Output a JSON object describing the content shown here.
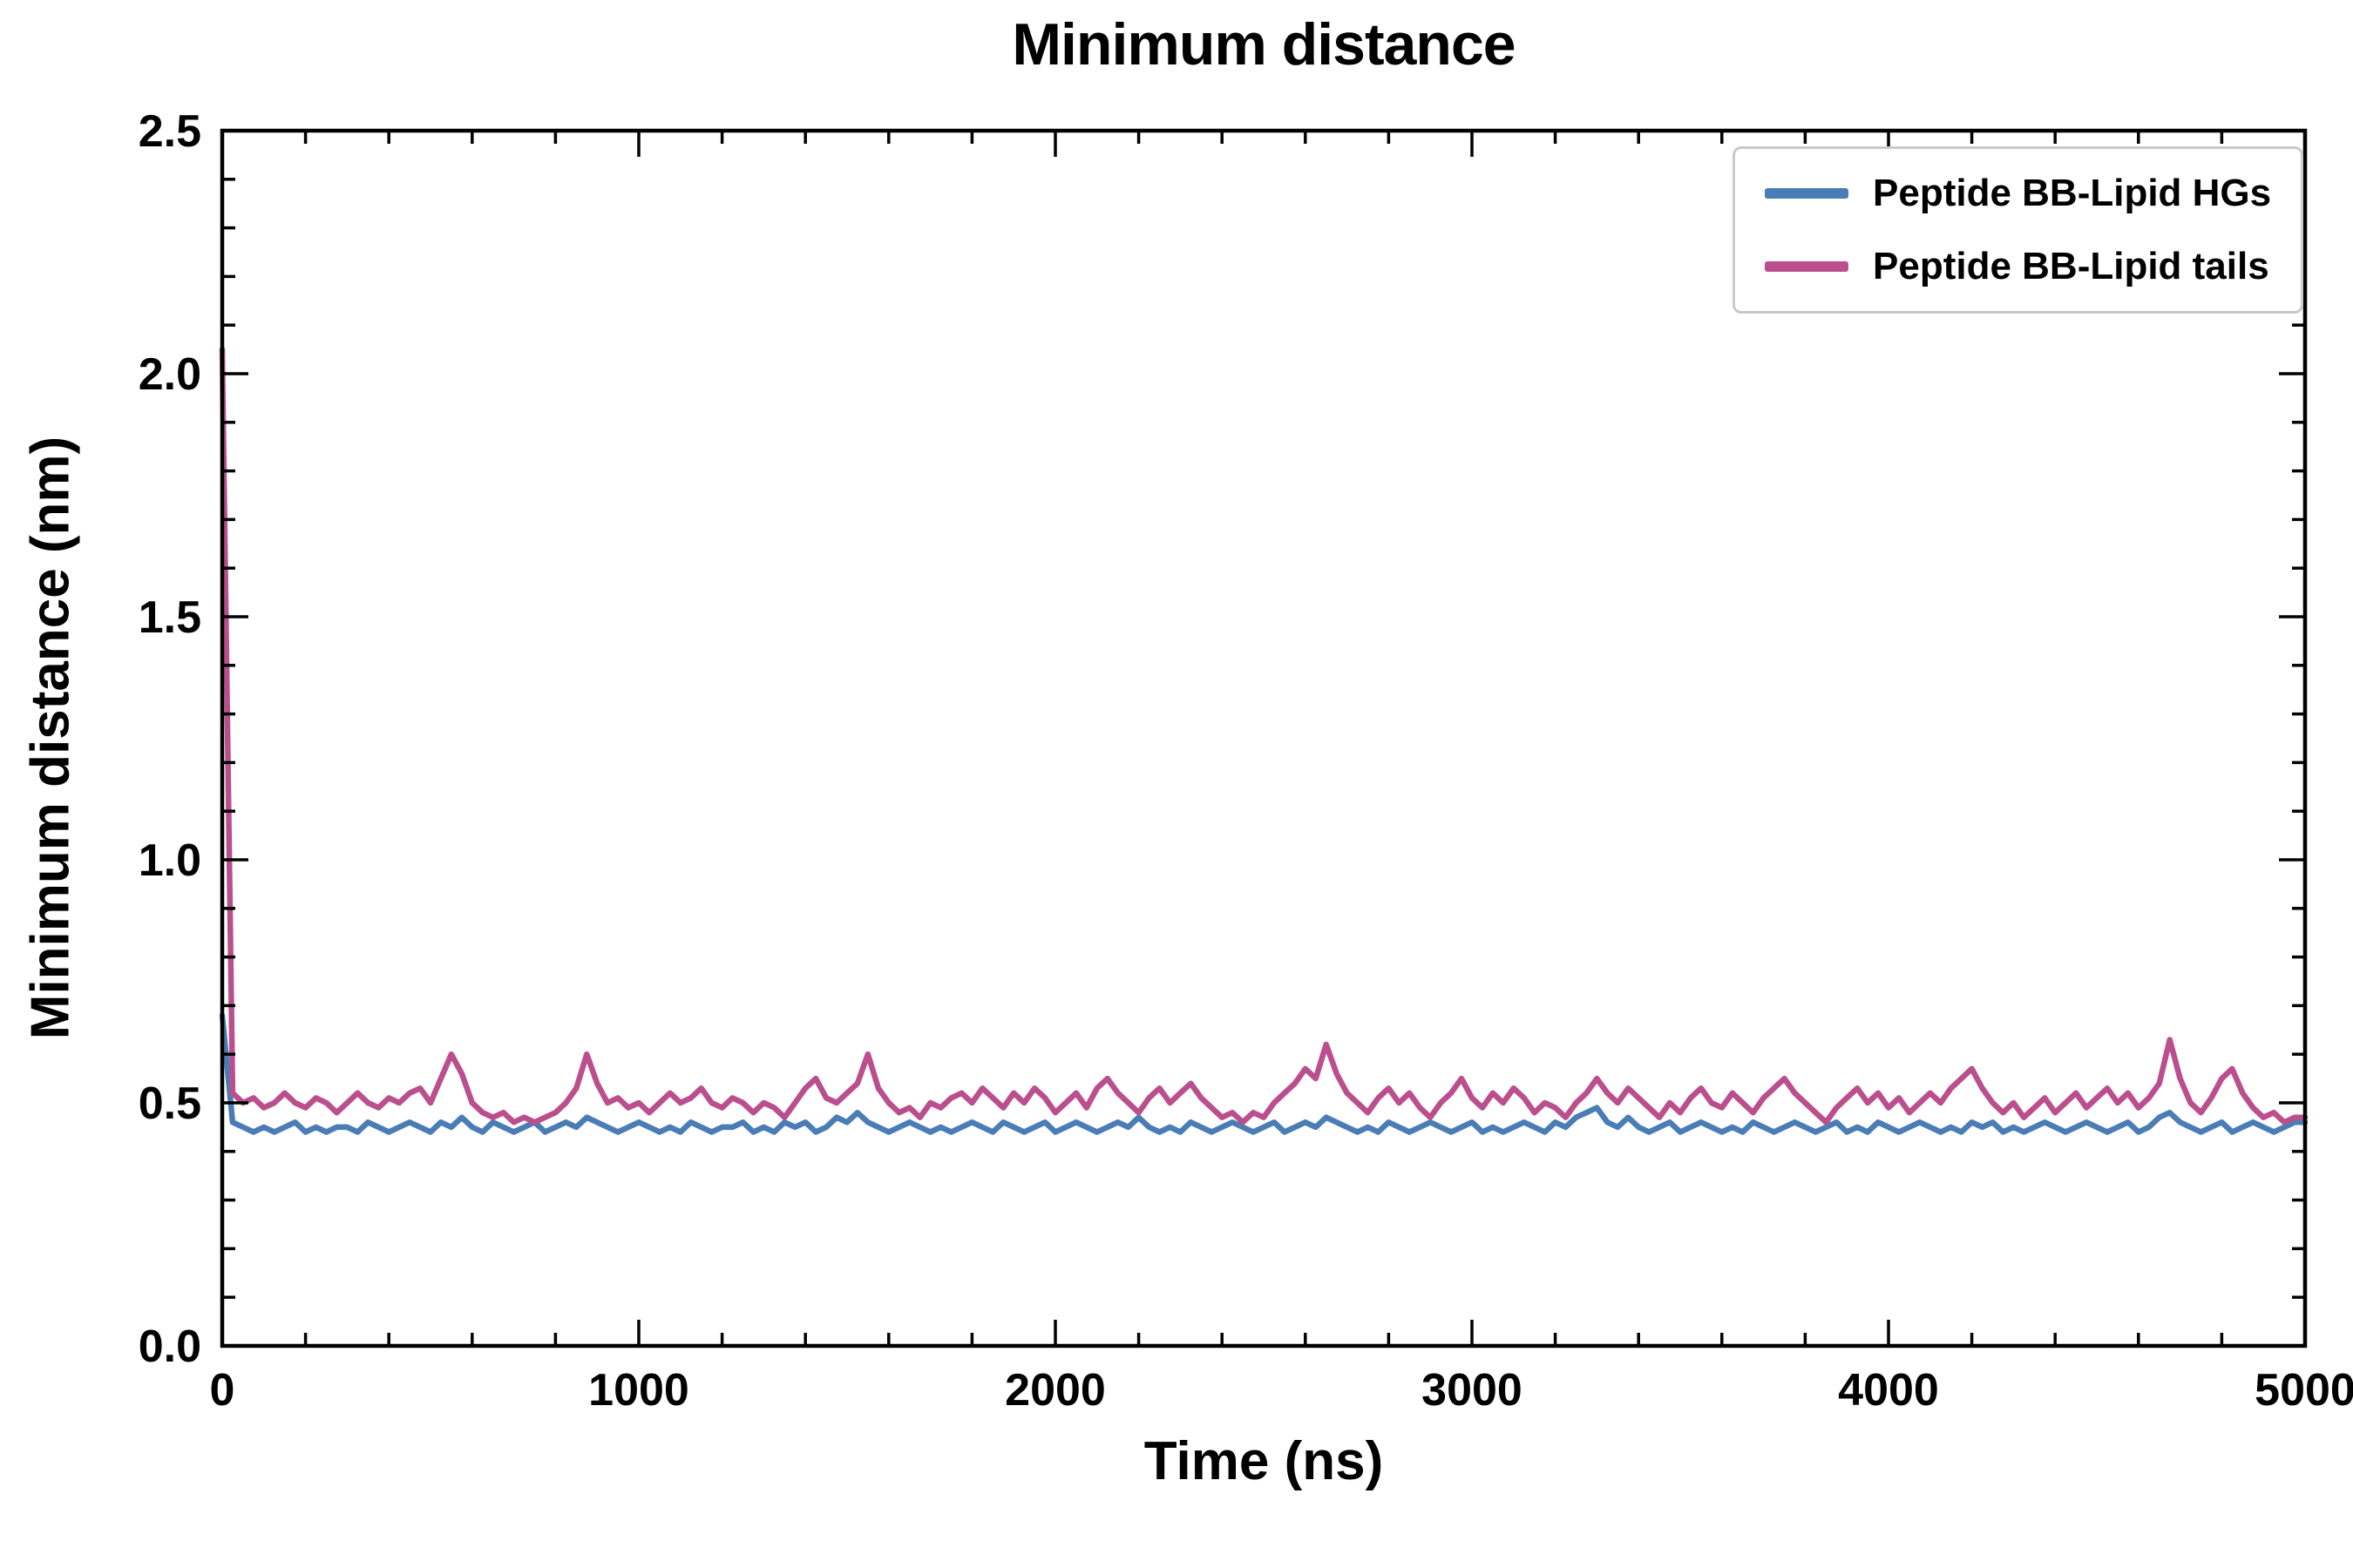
{
  "chart_data": {
    "type": "line",
    "title": "Minimum distance",
    "xlabel": "Time (ns)",
    "ylabel": "Minimum distance (nm)",
    "xlim": [
      0,
      5000
    ],
    "ylim": [
      0,
      2.5
    ],
    "grid": false,
    "legend_position": "upper right",
    "x_ticks": {
      "values": [
        0,
        1000,
        2000,
        3000,
        4000,
        5000
      ],
      "labels": [
        "0",
        "1000",
        "2000",
        "3000",
        "4000",
        "5000"
      ]
    },
    "y_ticks": {
      "values": [
        0,
        0.5,
        1.0,
        1.5,
        2.0,
        2.5
      ],
      "labels": [
        "0.0",
        "0.5",
        "1.0",
        "1.5",
        "2.0",
        "2.5"
      ]
    },
    "x_minor_step": 200,
    "y_minor_step": 0.1,
    "x": {
      "start": 0,
      "step": 25,
      "count": 201
    },
    "series": [
      {
        "name": "Peptide BB-Lipid HGs",
        "color": "#4a7db5",
        "values": [
          0.68,
          0.46,
          0.45,
          0.44,
          0.45,
          0.44,
          0.45,
          0.46,
          0.44,
          0.45,
          0.44,
          0.45,
          0.45,
          0.44,
          0.46,
          0.45,
          0.44,
          0.45,
          0.46,
          0.45,
          0.44,
          0.46,
          0.45,
          0.47,
          0.45,
          0.44,
          0.46,
          0.45,
          0.44,
          0.45,
          0.46,
          0.44,
          0.45,
          0.46,
          0.45,
          0.47,
          0.46,
          0.45,
          0.44,
          0.45,
          0.46,
          0.45,
          0.44,
          0.45,
          0.44,
          0.46,
          0.45,
          0.44,
          0.45,
          0.45,
          0.46,
          0.44,
          0.45,
          0.44,
          0.46,
          0.45,
          0.46,
          0.44,
          0.45,
          0.47,
          0.46,
          0.48,
          0.46,
          0.45,
          0.44,
          0.45,
          0.46,
          0.45,
          0.44,
          0.45,
          0.44,
          0.45,
          0.46,
          0.45,
          0.44,
          0.46,
          0.45,
          0.44,
          0.45,
          0.46,
          0.44,
          0.45,
          0.46,
          0.45,
          0.44,
          0.45,
          0.46,
          0.45,
          0.47,
          0.45,
          0.44,
          0.45,
          0.44,
          0.46,
          0.45,
          0.44,
          0.45,
          0.46,
          0.45,
          0.44,
          0.45,
          0.46,
          0.44,
          0.45,
          0.46,
          0.45,
          0.47,
          0.46,
          0.45,
          0.44,
          0.45,
          0.44,
          0.46,
          0.45,
          0.44,
          0.45,
          0.46,
          0.45,
          0.44,
          0.45,
          0.46,
          0.44,
          0.45,
          0.44,
          0.45,
          0.46,
          0.45,
          0.44,
          0.46,
          0.45,
          0.47,
          0.48,
          0.49,
          0.46,
          0.45,
          0.47,
          0.45,
          0.44,
          0.45,
          0.46,
          0.44,
          0.45,
          0.46,
          0.45,
          0.44,
          0.45,
          0.44,
          0.46,
          0.45,
          0.44,
          0.45,
          0.46,
          0.45,
          0.44,
          0.45,
          0.46,
          0.44,
          0.45,
          0.44,
          0.46,
          0.45,
          0.44,
          0.45,
          0.46,
          0.45,
          0.44,
          0.45,
          0.44,
          0.46,
          0.45,
          0.46,
          0.44,
          0.45,
          0.44,
          0.45,
          0.46,
          0.45,
          0.44,
          0.45,
          0.46,
          0.45,
          0.44,
          0.45,
          0.46,
          0.44,
          0.45,
          0.47,
          0.48,
          0.46,
          0.45,
          0.44,
          0.45,
          0.46,
          0.44,
          0.45,
          0.46,
          0.45,
          0.44,
          0.45,
          0.46,
          0.46
        ]
      },
      {
        "name": "Peptide BB-Lipid tails",
        "color": "#bb4f8e",
        "values": [
          2.05,
          0.52,
          0.5,
          0.51,
          0.49,
          0.5,
          0.52,
          0.5,
          0.49,
          0.51,
          0.5,
          0.48,
          0.5,
          0.52,
          0.5,
          0.49,
          0.51,
          0.5,
          0.52,
          0.53,
          0.5,
          0.55,
          0.6,
          0.56,
          0.5,
          0.48,
          0.47,
          0.48,
          0.46,
          0.47,
          0.46,
          0.47,
          0.48,
          0.5,
          0.53,
          0.6,
          0.54,
          0.5,
          0.51,
          0.49,
          0.5,
          0.48,
          0.5,
          0.52,
          0.5,
          0.51,
          0.53,
          0.5,
          0.49,
          0.51,
          0.5,
          0.48,
          0.5,
          0.49,
          0.47,
          0.5,
          0.53,
          0.55,
          0.51,
          0.5,
          0.52,
          0.54,
          0.6,
          0.53,
          0.5,
          0.48,
          0.49,
          0.47,
          0.5,
          0.49,
          0.51,
          0.52,
          0.5,
          0.53,
          0.51,
          0.49,
          0.52,
          0.5,
          0.53,
          0.51,
          0.48,
          0.5,
          0.52,
          0.49,
          0.53,
          0.55,
          0.52,
          0.5,
          0.48,
          0.51,
          0.53,
          0.5,
          0.52,
          0.54,
          0.51,
          0.49,
          0.47,
          0.48,
          0.46,
          0.48,
          0.47,
          0.5,
          0.52,
          0.54,
          0.57,
          0.55,
          0.62,
          0.56,
          0.52,
          0.5,
          0.48,
          0.51,
          0.53,
          0.5,
          0.52,
          0.49,
          0.47,
          0.5,
          0.52,
          0.55,
          0.51,
          0.49,
          0.52,
          0.5,
          0.53,
          0.51,
          0.48,
          0.5,
          0.49,
          0.47,
          0.5,
          0.52,
          0.55,
          0.52,
          0.5,
          0.53,
          0.51,
          0.49,
          0.47,
          0.5,
          0.48,
          0.51,
          0.53,
          0.5,
          0.49,
          0.52,
          0.5,
          0.48,
          0.51,
          0.53,
          0.55,
          0.52,
          0.5,
          0.48,
          0.46,
          0.49,
          0.51,
          0.53,
          0.5,
          0.52,
          0.49,
          0.51,
          0.48,
          0.5,
          0.52,
          0.5,
          0.53,
          0.55,
          0.57,
          0.53,
          0.5,
          0.48,
          0.5,
          0.47,
          0.49,
          0.51,
          0.48,
          0.5,
          0.52,
          0.49,
          0.51,
          0.53,
          0.5,
          0.52,
          0.49,
          0.51,
          0.54,
          0.63,
          0.55,
          0.5,
          0.48,
          0.51,
          0.55,
          0.57,
          0.52,
          0.49,
          0.47,
          0.48,
          0.46,
          0.47,
          0.47
        ]
      }
    ]
  }
}
